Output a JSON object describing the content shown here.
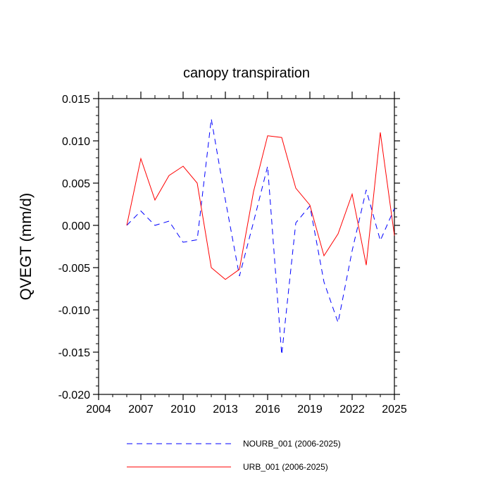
{
  "chart_data": {
    "type": "line",
    "title": "canopy transpiration",
    "xlabel": "",
    "ylabel": "QVEGT  (mm/d)",
    "xlim": [
      2004,
      2025
    ],
    "ylim": [
      -0.02,
      0.015
    ],
    "x_ticks": [
      2004,
      2007,
      2010,
      2013,
      2016,
      2019,
      2022,
      2025
    ],
    "x_tick_labels": [
      "2004",
      "2007",
      "2010",
      "2013",
      "2016",
      "2019",
      "2022",
      "2025"
    ],
    "y_ticks": [
      -0.02,
      -0.015,
      -0.01,
      -0.005,
      0.0,
      0.005,
      0.01,
      0.015
    ],
    "y_tick_labels": [
      "-0.020",
      "-0.015",
      "-0.010",
      "-0.005",
      "0.000",
      "0.005",
      "0.010",
      "0.015"
    ],
    "x": [
      2006,
      2007,
      2008,
      2009,
      2010,
      2011,
      2012,
      2013,
      2014,
      2015,
      2016,
      2017,
      2018,
      2019,
      2020,
      2021,
      2022,
      2023,
      2024,
      2025
    ],
    "series": [
      {
        "name": "NOURB_001 (2006-2025)",
        "color": "#0000ff",
        "dash": "dashed",
        "values": [
          0.0,
          0.0017,
          0.0,
          0.0005,
          -0.002,
          -0.0017,
          0.0126,
          0.003,
          -0.006,
          0.0004,
          0.007,
          -0.0153,
          0.0003,
          0.0023,
          -0.0067,
          -0.0115,
          -0.003,
          0.0042,
          -0.0018,
          0.002
        ]
      },
      {
        "name": "URB_001 (2006-2025)",
        "color": "#ff0000",
        "dash": "solid",
        "values": [
          0.0,
          0.0079,
          0.003,
          0.0059,
          0.007,
          0.005,
          -0.005,
          -0.0064,
          -0.0052,
          0.004,
          0.0106,
          0.0104,
          0.0044,
          0.0024,
          -0.0036,
          -0.001,
          0.0037,
          -0.0047,
          0.011,
          -0.0012
        ]
      }
    ],
    "legend_position": "bottom-center"
  }
}
